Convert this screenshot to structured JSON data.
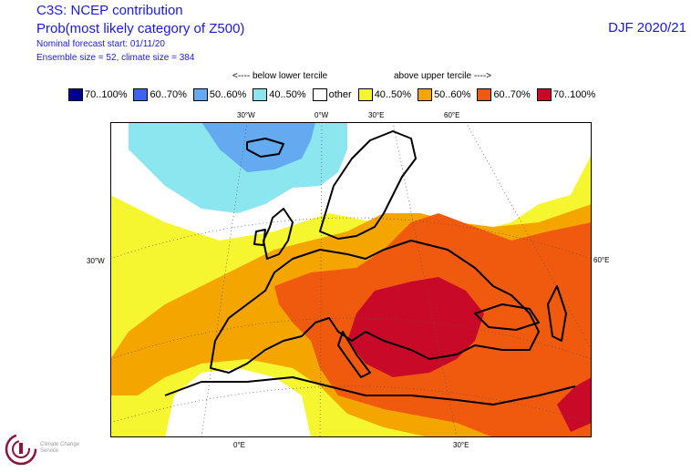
{
  "header": {
    "title": "C3S: NCEP contribution",
    "subtitle": "Prob(most likely category of Z500)",
    "forecast_start": "Nominal forecast start: 01/11/20",
    "ensemble": "Ensemble size = 52, climate size = 384",
    "season": "DJF 2020/21"
  },
  "terciles": {
    "below": "<---- below lower tercile",
    "above": "above upper tercile ---->"
  },
  "legend": [
    {
      "label": "70..100%",
      "color": "#00008c"
    },
    {
      "label": "60..70%",
      "color": "#3c64f0"
    },
    {
      "label": "50..60%",
      "color": "#64aaf0"
    },
    {
      "label": "40..50%",
      "color": "#8ce6f0"
    },
    {
      "label": "other",
      "color": "#ffffff"
    },
    {
      "label": "40..50%",
      "color": "#f5f530"
    },
    {
      "label": "50..60%",
      "color": "#f5a500"
    },
    {
      "label": "60..70%",
      "color": "#f05a0f"
    },
    {
      "label": "70..100%",
      "color": "#c80a28"
    }
  ],
  "map": {
    "top_labels": [
      "30°W",
      "0°W",
      "30°E",
      "60°E"
    ],
    "side_labels": {
      "left": "30°W",
      "right": "60°E"
    },
    "bottom_labels": [
      "0°E",
      "30°E"
    ]
  },
  "logo": {
    "text": "Climate Change Service"
  }
}
